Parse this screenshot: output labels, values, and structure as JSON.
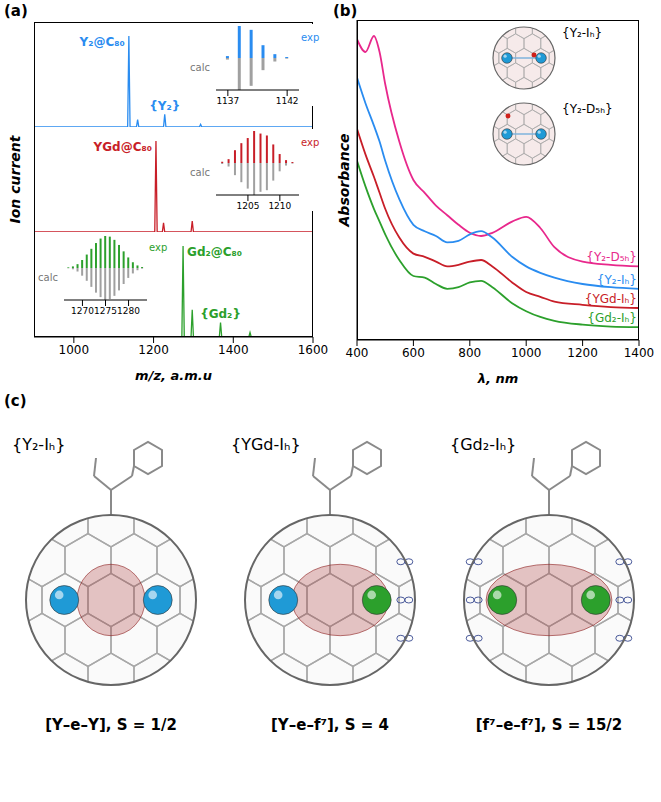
{
  "panel_labels": [
    "(a)",
    "(b)",
    "(c)"
  ],
  "chart_data": [
    {
      "type": "line",
      "x": [
        900,
        1135,
        1138,
        1141,
        1157,
        1160,
        1163,
        1225,
        1228,
        1231,
        1315,
        1318,
        1321,
        1600
      ],
      "values": [
        0,
        0,
        1.0,
        0,
        0,
        0.08,
        0,
        0,
        0.14,
        0,
        0,
        0.03,
        0,
        0
      ],
      "color": "#2a8cf0",
      "xlim": [
        900,
        1600
      ],
      "ylim": [
        0,
        1.1
      ],
      "tick_labels": false,
      "annotations": [
        {
          "text": "Y₂@C₈₀",
          "x": 1138
        },
        {
          "text": "{Y₂}",
          "x": 1228
        }
      ]
    },
    {
      "type": "line",
      "x": [
        900,
        1203,
        1206,
        1209,
        1222,
        1225,
        1228,
        1294,
        1297,
        1300,
        1600
      ],
      "values": [
        0,
        0,
        1.0,
        0,
        0,
        0.1,
        0,
        0,
        0.12,
        0,
        0
      ],
      "color": "#c81e28",
      "xlim": [
        900,
        1600
      ],
      "ylim": [
        0,
        1.1
      ],
      "tick_labels": false,
      "ylabel": "Ion current",
      "annotations": [
        {
          "text": "YGd@C₈₀",
          "x": 1206
        }
      ]
    },
    {
      "type": "line",
      "x": [
        900,
        1271,
        1274,
        1277,
        1294,
        1297,
        1300,
        1365,
        1368,
        1371,
        1439,
        1442,
        1445,
        1600
      ],
      "values": [
        0,
        0,
        1.0,
        0,
        0,
        0.3,
        0,
        0,
        0.16,
        0,
        0,
        0.05,
        0,
        0
      ],
      "color": "#2ca02c",
      "xlim": [
        900,
        1600
      ],
      "ylim": [
        0,
        1.1
      ],
      "xticks": [
        1000,
        1200,
        1400,
        1600
      ],
      "xlabel": "m/z, a.m.u",
      "tick_labels": "x",
      "annotations": [
        {
          "text": "Gd₂@C₈₀",
          "x": 1274
        },
        {
          "text": "{Gd₂}",
          "x": 1368
        }
      ]
    },
    {
      "type": "bar",
      "x": [
        1137,
        1138,
        1139,
        1140,
        1141,
        1142
      ],
      "series": [
        {
          "name": "exp",
          "color": "#2a8cf0",
          "values": [
            6,
            100,
            88,
            40,
            12,
            3
          ]
        },
        {
          "name": "calc",
          "color": "#a0a0a0",
          "values": [
            5,
            100,
            87,
            38,
            11,
            2
          ]
        }
      ],
      "xlim": [
        1136,
        1143
      ],
      "xticks": [
        1137,
        1142
      ],
      "ylim": [
        0,
        100
      ],
      "tick_labels": "x"
    },
    {
      "type": "bar",
      "x": [
        1201,
        1202,
        1203,
        1204,
        1205,
        1206,
        1207,
        1208,
        1209,
        1210,
        1211,
        1212
      ],
      "series": [
        {
          "name": "exp",
          "color": "#c81e28",
          "values": [
            4,
            12,
            40,
            62,
            78,
            100,
            92,
            86,
            58,
            28,
            9,
            3
          ]
        },
        {
          "name": "calc",
          "color": "#a0a0a0",
          "values": [
            3,
            11,
            38,
            60,
            80,
            100,
            90,
            85,
            55,
            26,
            8,
            2
          ]
        }
      ],
      "xlim": [
        1200,
        1213
      ],
      "xticks": [
        1205,
        1210
      ],
      "ylim": [
        0,
        100
      ],
      "tick_labels": "x"
    },
    {
      "type": "bar",
      "x": [
        1267,
        1268,
        1269,
        1270,
        1271,
        1272,
        1273,
        1274,
        1275,
        1276,
        1277,
        1278,
        1279,
        1280,
        1281,
        1282,
        1283
      ],
      "series": [
        {
          "name": "exp",
          "color": "#2ca02c",
          "values": [
            2,
            5,
            12,
            25,
            42,
            60,
            78,
            92,
            100,
            98,
            88,
            72,
            52,
            33,
            18,
            8,
            3
          ]
        },
        {
          "name": "calc",
          "color": "#a0a0a0",
          "values": [
            1,
            4,
            11,
            24,
            40,
            59,
            77,
            91,
            100,
            97,
            87,
            70,
            50,
            31,
            17,
            7,
            2
          ]
        }
      ],
      "xlim": [
        1266,
        1284
      ],
      "xticks": [
        1270,
        1275,
        1280
      ],
      "ylim": [
        0,
        100
      ],
      "tick_labels": "x"
    },
    {
      "type": "line",
      "x": [
        400,
        430,
        460,
        480,
        500,
        550,
        600,
        640,
        680,
        720,
        760,
        800,
        840,
        880,
        950,
        1000,
        1050,
        1100,
        1200,
        1300,
        1400
      ],
      "series": [
        {
          "name": "{Y₂-D₅ₕ}",
          "color": "#e8288c",
          "values": [
            9.4,
            9.0,
            9.5,
            9.0,
            8.0,
            6.2,
            5.0,
            4.6,
            4.2,
            3.9,
            3.6,
            3.35,
            3.25,
            3.35,
            3.7,
            3.85,
            3.5,
            2.9,
            2.45,
            2.35,
            2.3
          ]
        },
        {
          "name": "{Y₂-Iₕ}",
          "color": "#2a8cf0",
          "values": [
            8.2,
            7.4,
            6.7,
            6.2,
            5.6,
            4.4,
            3.6,
            3.4,
            3.25,
            3.05,
            3.1,
            3.3,
            3.4,
            3.2,
            2.6,
            2.3,
            2.1,
            1.95,
            1.75,
            1.65,
            1.6
          ]
        },
        {
          "name": "{YGd-Iₕ}",
          "color": "#c81e28",
          "values": [
            6.6,
            5.8,
            5.1,
            4.6,
            4.1,
            3.2,
            2.7,
            2.6,
            2.45,
            2.3,
            2.35,
            2.45,
            2.5,
            2.3,
            1.8,
            1.5,
            1.35,
            1.2,
            1.1,
            1.03,
            1.0
          ]
        },
        {
          "name": "{Gd₂-Iₕ}",
          "color": "#2ca02c",
          "values": [
            5.6,
            4.8,
            4.1,
            3.7,
            3.3,
            2.5,
            2.0,
            1.95,
            1.75,
            1.6,
            1.65,
            1.8,
            1.85,
            1.65,
            1.15,
            0.9,
            0.72,
            0.6,
            0.48,
            0.42,
            0.4
          ]
        }
      ],
      "xlim": [
        400,
        1400
      ],
      "xticks": [
        400,
        600,
        800,
        1000,
        1200,
        1400
      ],
      "ylim": [
        0,
        10
      ],
      "xlabel": "λ, nm",
      "ylabel": "Absorbance",
      "tick_labels": "x"
    }
  ],
  "panel_b_structures": [
    {
      "label": "{Y₂-Iₕ}",
      "colors": [
        "#1f9ad6",
        "#1f9ad6"
      ]
    },
    {
      "label": "{Y₂-D₅ₕ}",
      "colors": [
        "#1f9ad6",
        "#1f9ad6"
      ]
    }
  ],
  "panel_c_structures": [
    {
      "label": "{Y₂-Iₕ}",
      "formula": "[Y–e–Y], S = 1/2",
      "colors": [
        "#1f9ad6",
        "#1f9ad6"
      ]
    },
    {
      "label": "{YGd-Iₕ}",
      "formula": "[Y–e–f⁷], S = 4",
      "colors": [
        "#1f9ad6",
        "#2ca02c"
      ]
    },
    {
      "label": "{Gd₂-Iₕ}",
      "formula": "[f⁷–e–f⁷], S = 15/2",
      "colors": [
        "#2ca02c",
        "#2ca02c"
      ]
    }
  ]
}
